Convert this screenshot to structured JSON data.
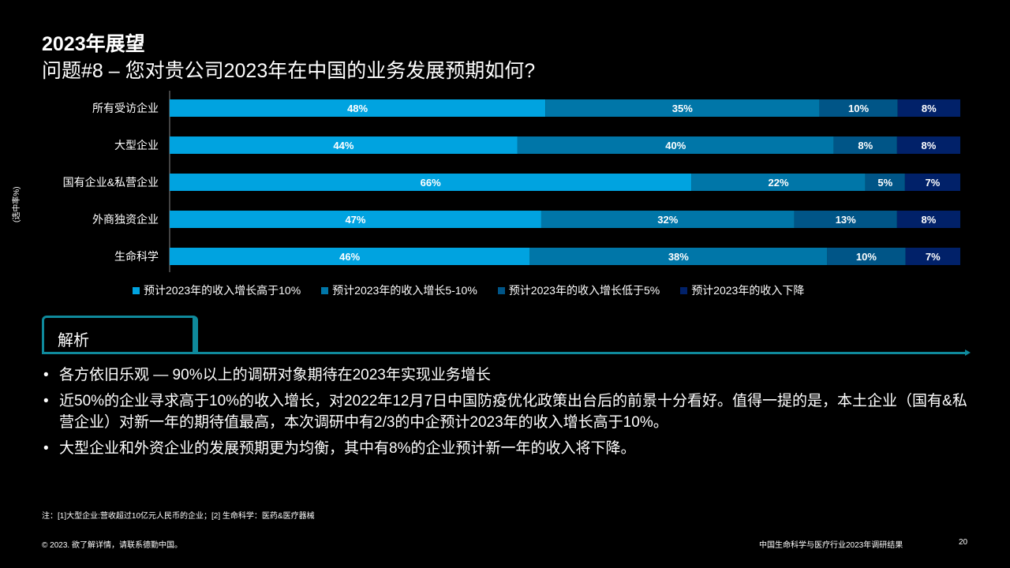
{
  "title": "2023年展望",
  "subtitle": "问题#8 – 您对贵公司2023年在中国的业务发展预期如何?",
  "chart_data": {
    "type": "bar",
    "orientation": "horizontal-stacked",
    "ylabel": "(选中率%)",
    "categories": [
      "所有受访企业",
      "大型企业",
      "国有企业&私营企业",
      "外商独资企业",
      "生命科学"
    ],
    "series": [
      {
        "name": "预计2023年的收入增长高于10%",
        "color": "#00A3E0",
        "values": [
          48,
          44,
          66,
          47,
          46
        ]
      },
      {
        "name": "预计2023年的收入增长5-10%",
        "color": "#0076A8",
        "values": [
          35,
          40,
          22,
          32,
          38
        ]
      },
      {
        "name": "预计2023年的收入增长低于5%",
        "color": "#005587",
        "values": [
          10,
          8,
          5,
          13,
          10
        ]
      },
      {
        "name": "预计2023年的收入下降",
        "color": "#012169",
        "values": [
          8,
          8,
          7,
          8,
          7
        ]
      }
    ],
    "legend": "bottom"
  },
  "analysis": {
    "tab_label": "解析",
    "bullets": [
      "各方依旧乐观 — 90%以上的调研对象期待在2023年实现业务增长",
      "近50%的企业寻求高于10%的收入增长，对2022年12月7日中国防疫优化政策出台后的前景十分看好。值得一提的是，本土企业（国有&私营企业）对新一年的期待值最高，本次调研中有2/3的中企预计2023年的收入增长高于10%。",
      "大型企业和外资企业的发展预期更为均衡，其中有8%的企业预计新一年的收入将下降。"
    ]
  },
  "note": "注：[1]大型企业:营收超过10亿元人民币的企业；[2] 生命科学：医药&医疗器械",
  "footer": {
    "copyright": "© 2023. 欲了解详情，请联系德勤中国。",
    "report": "中国生命科学与医疗行业2023年调研结果",
    "page": "20"
  }
}
